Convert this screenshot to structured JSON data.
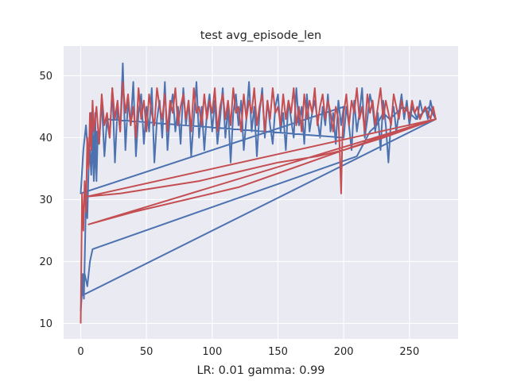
{
  "chart_data": {
    "type": "line",
    "title": "test avg_episode_len",
    "xlabel": "LR: 0.01 gamma: 0.99",
    "ylabel": "",
    "xlim": [
      -13,
      287
    ],
    "ylim": [
      7.5,
      54.8
    ],
    "xticks": [
      0,
      50,
      100,
      150,
      200,
      250
    ],
    "yticks": [
      10,
      20,
      30,
      40,
      50
    ],
    "grid": true,
    "background": "#EAEAF2",
    "series": [
      {
        "color": "#4C72B0",
        "x": [
          0,
          1,
          1.6,
          2.4,
          3.2,
          4,
          5,
          6,
          7,
          8,
          9,
          10,
          11,
          12,
          13,
          14,
          16,
          18,
          20,
          22,
          24,
          26,
          28,
          30,
          32,
          34,
          36,
          38,
          40,
          42,
          44,
          46,
          48,
          50,
          52,
          54,
          56,
          58,
          60,
          62,
          64,
          66,
          68,
          70,
          72,
          74,
          76,
          78,
          80,
          82,
          84,
          86,
          88,
          90,
          92,
          94,
          96,
          98,
          100,
          102,
          104,
          106,
          108,
          110,
          112,
          114,
          116,
          118,
          120,
          122,
          124,
          126,
          128,
          130,
          132,
          134,
          136,
          138,
          140,
          142,
          144,
          146,
          148,
          150,
          152,
          154,
          156,
          158,
          160,
          162,
          164,
          166,
          168,
          170,
          172,
          174,
          176,
          178,
          180,
          182,
          184,
          186,
          188,
          190,
          192,
          194,
          196,
          198,
          200,
          0,
          2,
          4,
          6,
          8,
          10,
          12,
          14,
          16,
          18,
          20,
          200,
          202,
          204,
          206,
          208,
          210,
          212,
          214,
          216,
          218,
          220,
          222,
          224,
          226,
          228,
          230,
          232,
          234,
          236,
          238,
          240,
          242,
          244,
          246,
          248,
          250,
          252,
          254,
          256,
          258,
          260,
          262,
          264,
          266,
          268,
          270,
          1,
          3,
          5,
          7,
          9,
          210,
          215,
          220,
          225,
          230,
          235,
          240,
          245,
          250,
          255,
          260,
          265,
          270
        ],
        "y": [
          12,
          15,
          18,
          14,
          22,
          30,
          27,
          35,
          38,
          34,
          42,
          36,
          44,
          33,
          41,
          39,
          46,
          37,
          43,
          40,
          48,
          36,
          45,
          41,
          52,
          38,
          46,
          42,
          49,
          37,
          44,
          47,
          39,
          45,
          41,
          48,
          36,
          43,
          46,
          40,
          49,
          38,
          44,
          47,
          41,
          45,
          39,
          48,
          42,
          46,
          37,
          43,
          49,
          40,
          45,
          38,
          44,
          47,
          41,
          46,
          39,
          43,
          48,
          40,
          45,
          36,
          44,
          47,
          42,
          46,
          38,
          43,
          49,
          41,
          45,
          37,
          44,
          48,
          40,
          46,
          42,
          39,
          45,
          47,
          41,
          44,
          38,
          46,
          43,
          40,
          48,
          42,
          45,
          39,
          47,
          41,
          44,
          46,
          43,
          40,
          45,
          42,
          47,
          41,
          44,
          39,
          46,
          42,
          45,
          31,
          38,
          42,
          36,
          44,
          33,
          41,
          39,
          46,
          37,
          43,
          40,
          45,
          42,
          38,
          46,
          41,
          44,
          48,
          40,
          43,
          47,
          45,
          41,
          44,
          38,
          46,
          42,
          36,
          43,
          45,
          41,
          44,
          47,
          43,
          46,
          42,
          45,
          44,
          43,
          46,
          44,
          45,
          43,
          46,
          44,
          43,
          14.5,
          18,
          16,
          20,
          22,
          37,
          39,
          41,
          42,
          44,
          43,
          44,
          45,
          44,
          43,
          44,
          45,
          43
        ]
      },
      {
        "color": "#C44E52",
        "x": [
          0,
          1,
          2,
          3,
          4,
          5,
          6,
          7,
          8,
          9,
          10,
          12,
          14,
          16,
          18,
          20,
          22,
          24,
          26,
          28,
          30,
          32,
          34,
          36,
          38,
          40,
          42,
          44,
          46,
          48,
          50,
          52,
          54,
          56,
          58,
          60,
          62,
          64,
          66,
          68,
          70,
          72,
          74,
          76,
          78,
          80,
          82,
          84,
          86,
          88,
          90,
          92,
          94,
          96,
          98,
          100,
          102,
          104,
          106,
          108,
          110,
          112,
          114,
          116,
          118,
          120,
          122,
          124,
          126,
          128,
          130,
          132,
          134,
          136,
          138,
          140,
          142,
          144,
          146,
          148,
          150,
          152,
          154,
          156,
          158,
          160,
          162,
          164,
          166,
          168,
          170,
          172,
          174,
          176,
          178,
          180,
          182,
          184,
          186,
          188,
          190,
          192,
          194,
          196,
          197,
          198,
          199,
          200,
          202,
          204,
          206,
          208,
          210,
          212,
          214,
          216,
          218,
          220,
          222,
          224,
          226,
          228,
          230,
          232,
          234,
          236,
          238,
          240,
          242,
          244,
          246,
          248,
          250,
          252,
          254,
          256,
          258,
          260,
          262,
          264,
          266,
          268,
          270,
          5,
          30,
          60,
          90,
          120,
          150,
          180,
          200,
          230,
          270,
          6,
          40,
          80,
          120,
          160,
          200,
          240,
          270
        ],
        "y": [
          10,
          31,
          25,
          33,
          28,
          40,
          35,
          44,
          38,
          46,
          41,
          45,
          39,
          47,
          42,
          44,
          40,
          48,
          43,
          46,
          41,
          49,
          44,
          47,
          42,
          45,
          40,
          48,
          43,
          46,
          41,
          47,
          44,
          42,
          48,
          45,
          43,
          47,
          41,
          46,
          44,
          48,
          42,
          45,
          47,
          43,
          46,
          41,
          48,
          44,
          45,
          42,
          47,
          43,
          46,
          44,
          48,
          41,
          45,
          47,
          43,
          46,
          42,
          48,
          44,
          45,
          41,
          47,
          43,
          46,
          44,
          48,
          42,
          45,
          47,
          41,
          46,
          43,
          48,
          44,
          45,
          42,
          47,
          43,
          46,
          44,
          48,
          42,
          45,
          41,
          47,
          43,
          46,
          44,
          48,
          42,
          45,
          47,
          43,
          46,
          44,
          41,
          45,
          43,
          38,
          31,
          40,
          44,
          47,
          42,
          46,
          44,
          48,
          43,
          45,
          41,
          47,
          44,
          46,
          42,
          45,
          48,
          43,
          46,
          44,
          42,
          47,
          45,
          43,
          46,
          44,
          45,
          43,
          46,
          44,
          45,
          43,
          44,
          45,
          44,
          43,
          45,
          43,
          30.5,
          31,
          32,
          33,
          34.5,
          36,
          37,
          38,
          40,
          43,
          26,
          28,
          30,
          32,
          35,
          38,
          41,
          43
        ]
      }
    ]
  }
}
